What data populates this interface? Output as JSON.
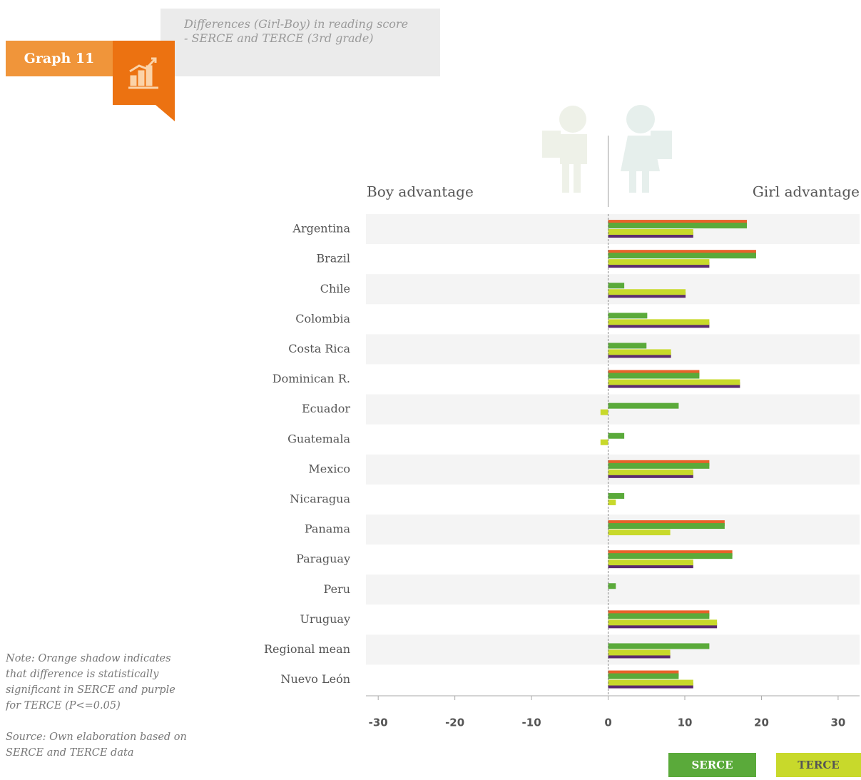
{
  "chart_data": {
    "type": "bar",
    "graph_label": "Graph 11",
    "title": "Differences (Girl-Boy) in reading score - SERCE and TERCE (3rd grade)",
    "left_label": "Boy advantage",
    "right_label": "Girl advantage",
    "note": "Note: Orange shadow indicates that difference is statistically significant in SERCE and purple for TERCE (P<=0.05)",
    "source": "Source: Own elaboration based on SERCE and TERCE data",
    "categories": [
      "Argentina",
      "Brazil",
      "Chile",
      "Colombia",
      "Costa Rica",
      "Dominican R.",
      "Ecuador",
      "Guatemala",
      "Mexico",
      "Nicaragua",
      "Panama",
      "Paraguay",
      "Peru",
      "Uruguay",
      "Regional mean",
      "Nuevo León"
    ],
    "series": [
      {
        "name": "SERCE",
        "color": "#5aaa3a",
        "shadow_color": "#e8622a",
        "values": [
          18.1,
          19.3,
          2.1,
          5.1,
          5.0,
          11.9,
          9.2,
          2.1,
          13.2,
          2.1,
          15.2,
          16.2,
          1.0,
          13.2,
          13.2,
          9.2
        ],
        "significant": [
          true,
          true,
          false,
          false,
          false,
          true,
          false,
          false,
          true,
          false,
          true,
          true,
          false,
          true,
          false,
          true
        ]
      },
      {
        "name": "TERCE",
        "color": "#c8d92b",
        "shadow_color": "#5b2a6f",
        "values": [
          11.1,
          13.2,
          10.1,
          13.2,
          8.2,
          17.2,
          -1.0,
          -1.0,
          11.1,
          1.0,
          8.1,
          11.1,
          null,
          14.2,
          8.1,
          11.1
        ],
        "significant": [
          true,
          true,
          true,
          true,
          true,
          true,
          false,
          false,
          true,
          false,
          false,
          true,
          false,
          true,
          true,
          true
        ]
      }
    ],
    "xlim": [
      -31.6,
      32.8
    ],
    "xticks": [
      -30,
      -20,
      -10,
      0,
      10,
      20,
      30
    ]
  }
}
